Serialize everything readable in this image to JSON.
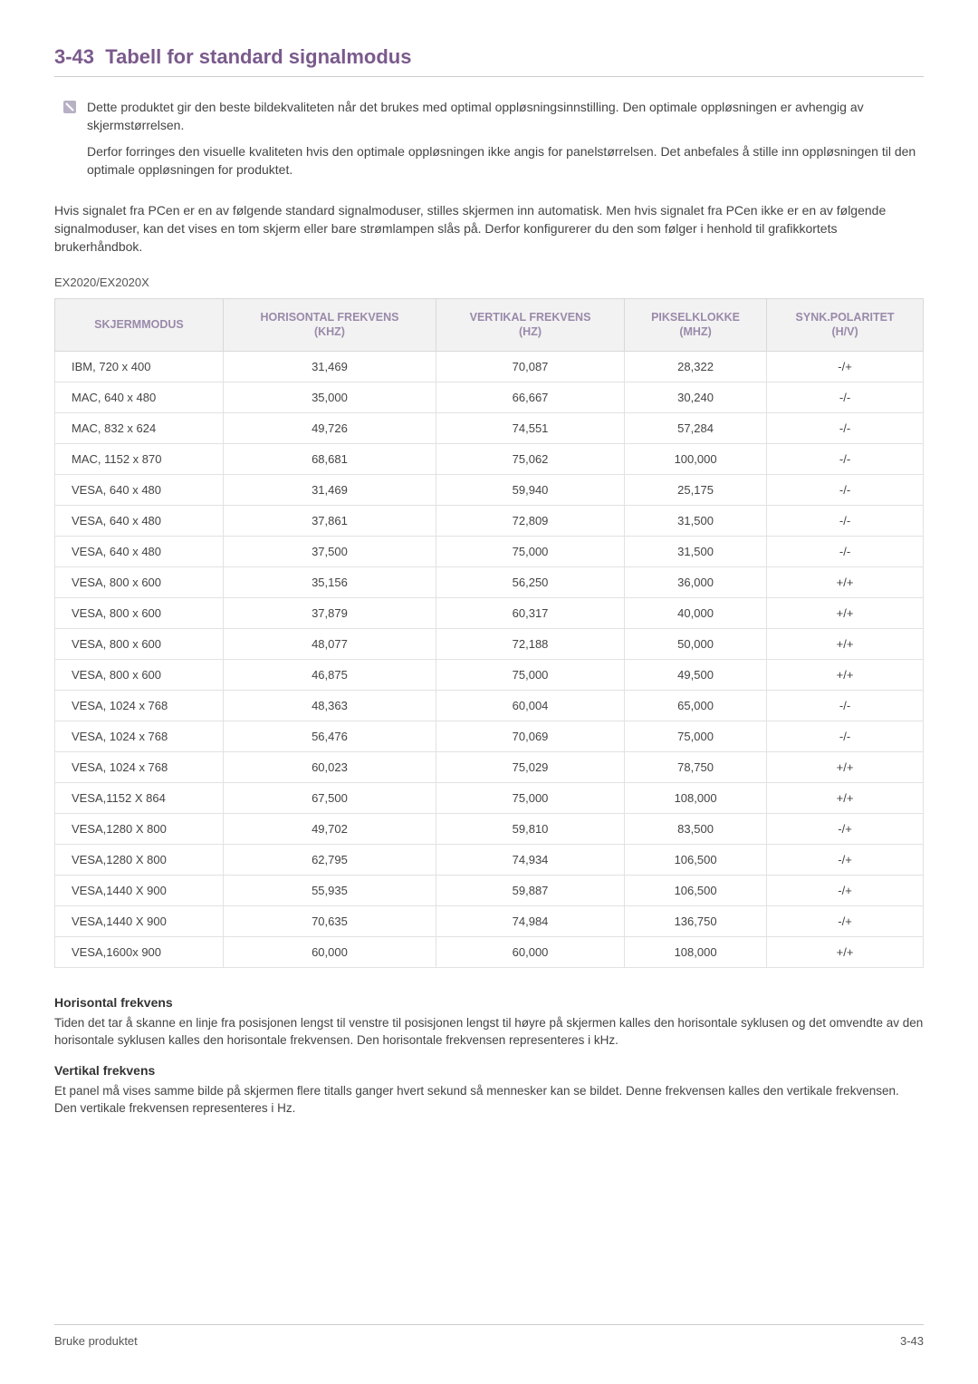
{
  "heading": {
    "number": "3-43",
    "title": "Tabell for standard signalmodus"
  },
  "note": {
    "para1": "Dette produktet gir den beste bildekvaliteten når det brukes med optimal oppløsningsinnstilling. Den optimale oppløsningen er avhengig av skjermstørrelsen.",
    "para2": "Derfor forringes den visuelle kvaliteten hvis den optimale oppløsningen ikke angis for panelstørrelsen. Det anbefales å stille inn oppløsningen til den optimale oppløsningen for produktet."
  },
  "body_paragraph": "Hvis signalet fra PCen er en av følgende standard signalmoduser, stilles skjermen inn automatisk. Men hvis signalet fra PCen ikke er en av følgende signalmoduser, kan det vises en tom skjerm eller bare strømlampen slås på. Derfor konfigurerer du den som følger i henhold til grafikkortets brukerhåndbok.",
  "model_label": "EX2020/EX2020X",
  "table": {
    "columns": [
      "SKJERMMODUS",
      "HORISONTAL FREKVENS (KHZ)",
      "VERTIKAL FREKVENS (HZ)",
      "PIKSELKLOKKE (MHZ)",
      "SYNK.POLARITET (H/V)"
    ],
    "rows": [
      [
        "IBM, 720 x 400",
        "31,469",
        "70,087",
        "28,322",
        "-/+"
      ],
      [
        "MAC, 640 x 480",
        "35,000",
        "66,667",
        "30,240",
        "-/-"
      ],
      [
        "MAC, 832 x 624",
        "49,726",
        "74,551",
        "57,284",
        "-/-"
      ],
      [
        "MAC, 1152 x 870",
        "68,681",
        "75,062",
        "100,000",
        "-/-"
      ],
      [
        "VESA, 640 x 480",
        "31,469",
        "59,940",
        "25,175",
        "-/-"
      ],
      [
        "VESA, 640 x 480",
        "37,861",
        "72,809",
        "31,500",
        "-/-"
      ],
      [
        "VESA, 640 x 480",
        "37,500",
        "75,000",
        "31,500",
        "-/-"
      ],
      [
        "VESA, 800 x 600",
        "35,156",
        "56,250",
        "36,000",
        "+/+"
      ],
      [
        "VESA, 800 x 600",
        "37,879",
        "60,317",
        "40,000",
        "+/+"
      ],
      [
        "VESA, 800 x 600",
        "48,077",
        "72,188",
        "50,000",
        "+/+"
      ],
      [
        "VESA, 800 x 600",
        "46,875",
        "75,000",
        "49,500",
        "+/+"
      ],
      [
        "VESA, 1024 x 768",
        "48,363",
        "60,004",
        "65,000",
        "-/-"
      ],
      [
        "VESA, 1024 x 768",
        "56,476",
        "70,069",
        "75,000",
        "-/-"
      ],
      [
        "VESA, 1024 x 768",
        "60,023",
        "75,029",
        "78,750",
        "+/+"
      ],
      [
        "VESA,1152 X 864",
        "67,500",
        "75,000",
        "108,000",
        "+/+"
      ],
      [
        "VESA,1280 X 800",
        "49,702",
        "59,810",
        "83,500",
        "-/+"
      ],
      [
        "VESA,1280 X 800",
        "62,795",
        "74,934",
        "106,500",
        "-/+"
      ],
      [
        "VESA,1440 X 900",
        "55,935",
        "59,887",
        "106,500",
        "-/+"
      ],
      [
        "VESA,1440 X 900",
        "70,635",
        "74,984",
        "136,750",
        "-/+"
      ],
      [
        "VESA,1600x 900",
        "60,000",
        "60,000",
        "108,000",
        "+/+"
      ]
    ],
    "header_bg": "#f2f2f2",
    "header_color": "#9a8aaa",
    "border_color": "#e2e2e2"
  },
  "definitions": {
    "h1": "Horisontal frekvens",
    "t1": "Tiden det tar å skanne en linje fra posisjonen lengst til venstre til posisjonen lengst til høyre på skjermen kalles den horisontale syklusen og det omvendte av den horisontale syklusen kalles den horisontale frekvensen. Den horisontale frekvensen representeres i kHz.",
    "h2": "Vertikal frekvens",
    "t2": "Et panel må vises samme bilde på skjermen flere titalls ganger hvert sekund så mennesker kan se bildet. Denne frekvensen kalles den vertikale frekvensen. Den vertikale frekvensen representeres i Hz."
  },
  "footer": {
    "left": "Bruke produktet",
    "right": "3-43"
  },
  "colors": {
    "heading": "#7a5a8c",
    "text": "#444444",
    "border": "#cccccc"
  }
}
